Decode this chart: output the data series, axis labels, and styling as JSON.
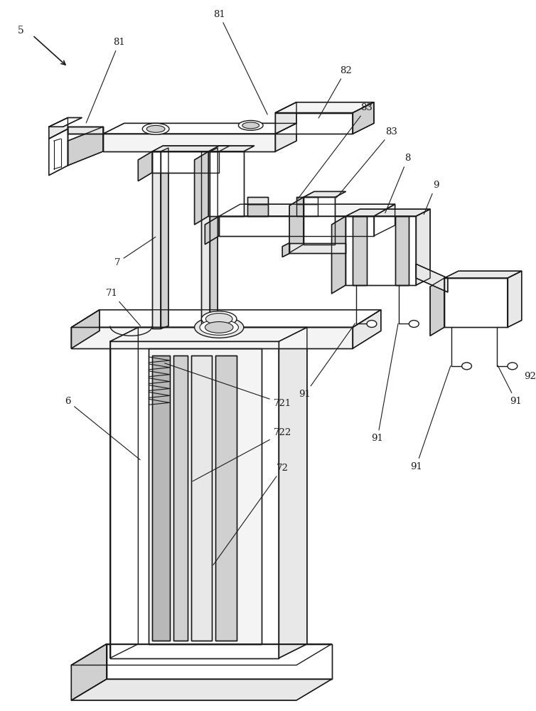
{
  "background_color": "#ffffff",
  "line_color": "#1a1a1a",
  "lw": 1.0,
  "figsize": [
    7.54,
    10.0
  ],
  "dpi": 100,
  "label_fontsize": 9.5
}
